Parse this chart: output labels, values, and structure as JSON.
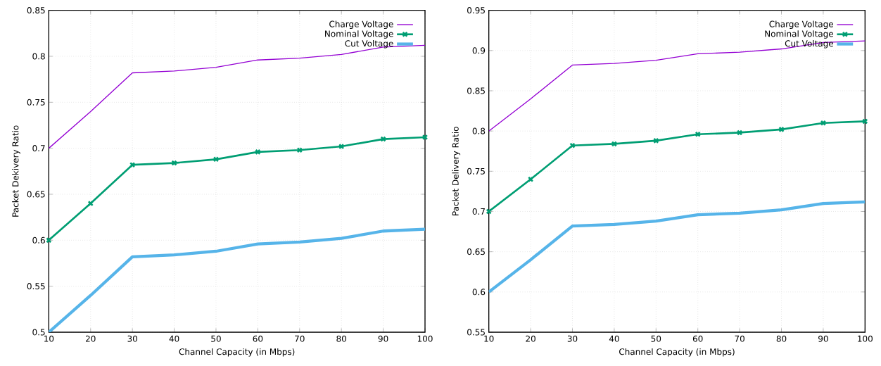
{
  "chart_data": [
    {
      "type": "line",
      "xlabel": "Channel Capacity (in Mbps)",
      "ylabel": "Packet Dekivery Ratio",
      "x": [
        10,
        20,
        30,
        40,
        50,
        60,
        70,
        80,
        90,
        100
      ],
      "series": [
        {
          "name": "Charge Voltage",
          "color": "#9400d3",
          "marker": "none",
          "values": [
            0.7,
            0.74,
            0.782,
            0.784,
            0.788,
            0.796,
            0.798,
            0.802,
            0.81,
            0.812
          ]
        },
        {
          "name": "Nominal Voltage",
          "color": "#009e73",
          "marker": "cross",
          "values": [
            0.6,
            0.64,
            0.682,
            0.684,
            0.688,
            0.696,
            0.698,
            0.702,
            0.71,
            0.712
          ]
        },
        {
          "name": "Cut Voltage",
          "color": "#56b4e9",
          "marker": "none",
          "values": [
            0.5,
            0.54,
            0.582,
            0.584,
            0.588,
            0.596,
            0.598,
            0.602,
            0.61,
            0.612
          ]
        }
      ],
      "xlim": [
        10,
        100
      ],
      "xticks": [
        10,
        20,
        30,
        40,
        50,
        60,
        70,
        80,
        90,
        100
      ],
      "ylim": [
        0.5,
        0.85
      ],
      "yticks": [
        0.5,
        0.55,
        0.6,
        0.65,
        0.7,
        0.75,
        0.8,
        0.85
      ],
      "grid": true,
      "legend": "top right"
    },
    {
      "type": "line",
      "xlabel": "Channel Capacity (in Mbps)",
      "ylabel": "Packet Delivery Ratio",
      "x": [
        10,
        20,
        30,
        40,
        50,
        60,
        70,
        80,
        90,
        100
      ],
      "series": [
        {
          "name": "Charge Voltage",
          "color": "#9400d3",
          "marker": "none",
          "values": [
            0.8,
            0.84,
            0.882,
            0.884,
            0.888,
            0.896,
            0.898,
            0.902,
            0.91,
            0.912
          ]
        },
        {
          "name": "Nominal Voltage",
          "color": "#009e73",
          "marker": "cross",
          "values": [
            0.7,
            0.74,
            0.782,
            0.784,
            0.788,
            0.796,
            0.798,
            0.802,
            0.81,
            0.812
          ]
        },
        {
          "name": "Cut Voltage",
          "color": "#56b4e9",
          "marker": "none",
          "values": [
            0.6,
            0.64,
            0.682,
            0.684,
            0.688,
            0.696,
            0.698,
            0.702,
            0.71,
            0.712
          ]
        }
      ],
      "xlim": [
        10,
        100
      ],
      "xticks": [
        10,
        20,
        30,
        40,
        50,
        60,
        70,
        80,
        90,
        100
      ],
      "ylim": [
        0.55,
        0.95
      ],
      "yticks": [
        0.55,
        0.6,
        0.65,
        0.7,
        0.75,
        0.8,
        0.85,
        0.9,
        0.95
      ],
      "grid": true,
      "legend": "top right"
    }
  ]
}
